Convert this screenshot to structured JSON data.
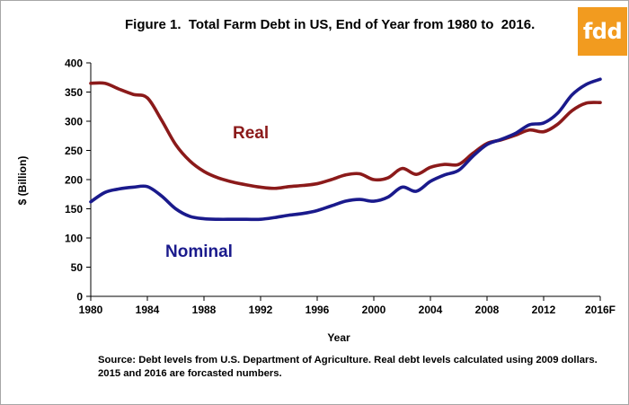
{
  "chart_data": {
    "type": "line",
    "title": "Figure 1.  Total Farm Debt in US, End of Year from 1980 to  2016.",
    "xlabel": "Year",
    "ylabel": "$ (Billion)",
    "ylim": [
      0,
      400
    ],
    "xlim": [
      1980,
      2016
    ],
    "yticks": [
      "0",
      "50",
      "100",
      "150",
      "200",
      "250",
      "300",
      "350",
      "400"
    ],
    "xticks": [
      {
        "x": 1980,
        "label": "1980"
      },
      {
        "x": 1984,
        "label": "1984"
      },
      {
        "x": 1988,
        "label": "1988"
      },
      {
        "x": 1992,
        "label": "1992"
      },
      {
        "x": 1996,
        "label": "1996"
      },
      {
        "x": 2000,
        "label": "2000"
      },
      {
        "x": 2004,
        "label": "2004"
      },
      {
        "x": 2008,
        "label": "2008"
      },
      {
        "x": 2012,
        "label": "2012"
      },
      {
        "x": 2016,
        "label": "2016F"
      }
    ],
    "grid": false,
    "x": [
      1980,
      1981,
      1982,
      1983,
      1984,
      1985,
      1986,
      1987,
      1988,
      1989,
      1990,
      1991,
      1992,
      1993,
      1994,
      1995,
      1996,
      1997,
      1998,
      1999,
      2000,
      2001,
      2002,
      2003,
      2004,
      2005,
      2006,
      2007,
      2008,
      2009,
      2010,
      2011,
      2012,
      2013,
      2014,
      2015,
      2016
    ],
    "series": [
      {
        "name": "Real",
        "color": "#8b1a1a",
        "values": [
          365,
          365,
          355,
          346,
          340,
          302,
          260,
          232,
          214,
          203,
          196,
          191,
          187,
          185,
          188,
          190,
          193,
          200,
          208,
          210,
          200,
          203,
          219,
          209,
          221,
          226,
          226,
          245,
          262,
          268,
          276,
          285,
          282,
          295,
          318,
          331,
          332
        ]
      },
      {
        "name": "Nominal",
        "color": "#1a1a8c",
        "values": [
          162,
          178,
          184,
          187,
          188,
          172,
          150,
          137,
          133,
          132,
          132,
          132,
          132,
          135,
          139,
          142,
          147,
          155,
          163,
          166,
          163,
          170,
          187,
          180,
          197,
          208,
          216,
          240,
          260,
          269,
          279,
          294,
          297,
          314,
          345,
          363,
          372
        ]
      }
    ],
    "annotations": [
      {
        "text": "Real",
        "color": "#8b1a1a"
      },
      {
        "text": "Nominal",
        "color": "#1a1a8c"
      }
    ]
  },
  "source_note": "Source: Debt levels from U.S. Department of Agriculture.  Real debt levels calculated using 2009 dollars.  2015 and 2016 are forcasted numbers.",
  "logo": {
    "text": "fdd",
    "color": "#f29b1f"
  }
}
